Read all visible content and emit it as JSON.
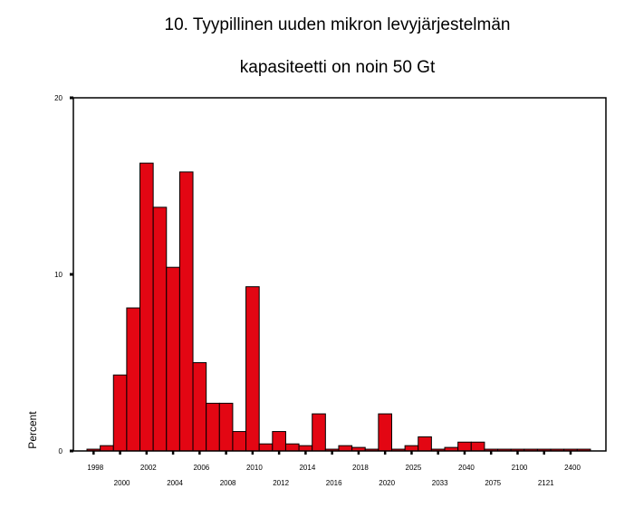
{
  "chart_data": {
    "type": "bar",
    "title_lines": [
      "10. Tyypillinen uuden mikron levyjärjestelmän",
      "kapasiteetti on noin 50 Gt"
    ],
    "ylabel": "Percent",
    "xlabel": "",
    "ylim": [
      0,
      20
    ],
    "yticks": [
      0,
      10,
      20
    ],
    "grid": false,
    "legend": "none",
    "bar_color": "#e30613",
    "x_tick_labels_upper": [
      "1998",
      "2002",
      "2006",
      "2010",
      "2014",
      "2018",
      "2025",
      "2040",
      "2100",
      "2400"
    ],
    "x_tick_labels_lower": [
      "2000",
      "2004",
      "2008",
      "2012",
      "2016",
      "2020",
      "2033",
      "2075",
      "2121"
    ],
    "values": [
      0.1,
      0.3,
      4.3,
      8.1,
      16.3,
      13.8,
      10.4,
      15.8,
      5.0,
      2.7,
      2.7,
      1.1,
      9.3,
      0.4,
      1.1,
      0.4,
      0.3,
      2.1,
      0.1,
      0.3,
      0.2,
      0.1,
      2.1,
      0.1,
      0.3,
      0.8,
      0.1,
      0.2,
      0.5,
      0.5,
      0.1,
      0.1,
      0.1,
      0.1,
      0.1,
      0.1,
      0.1,
      0.1
    ]
  }
}
